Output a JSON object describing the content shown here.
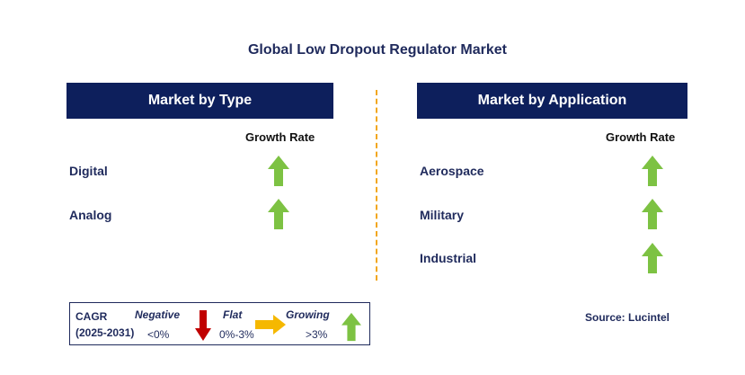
{
  "title": "Global Low Dropout Regulator Market",
  "left_panel": {
    "header": "Market by Type",
    "growth_rate_label": "Growth Rate",
    "rows": [
      {
        "label": "Digital",
        "trend": "growing"
      },
      {
        "label": "Analog",
        "trend": "growing"
      }
    ]
  },
  "right_panel": {
    "header": "Market by Application",
    "growth_rate_label": "Growth Rate",
    "rows": [
      {
        "label": "Aerospace",
        "trend": "growing"
      },
      {
        "label": "Military",
        "trend": "growing"
      },
      {
        "label": "Industrial",
        "trend": "growing"
      }
    ]
  },
  "legend": {
    "cagr_label": "CAGR",
    "period": "(2025-2031)",
    "negative_label": "Negative",
    "negative_range": "<0%",
    "flat_label": "Flat",
    "flat_range": "0%-3%",
    "growing_label": "Growing",
    "growing_range": ">3%"
  },
  "source": "Source: Lucintel",
  "colors": {
    "header_bg": "#0d1f5c",
    "text_navy": "#1f2a5c",
    "growing_green": "#7dc243",
    "negative_red": "#c00000",
    "flat_orange": "#f5b800",
    "divider": "#f2a71f"
  },
  "icons": {
    "growing": "up-arrow-icon",
    "negative": "down-arrow-icon",
    "flat": "right-arrow-icon"
  }
}
